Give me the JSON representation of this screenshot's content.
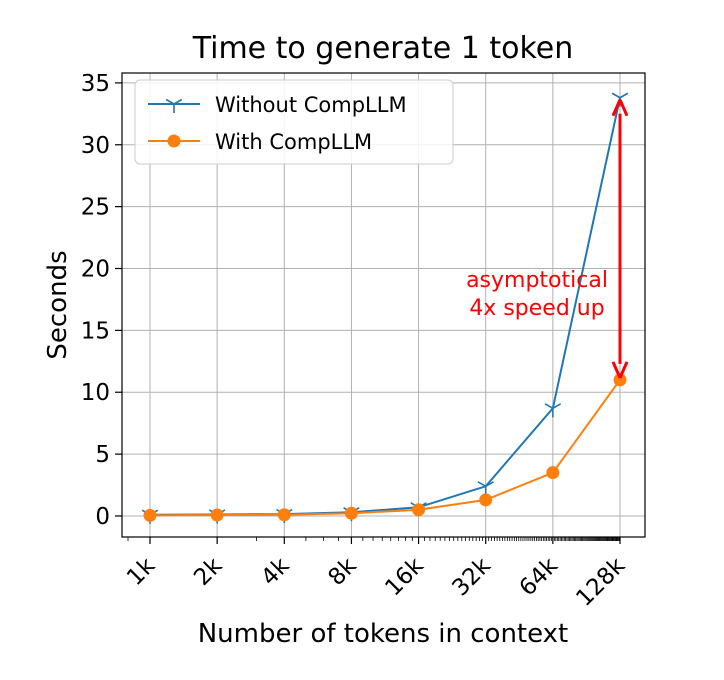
{
  "chart_data": {
    "type": "line",
    "title": "Time to generate 1 token",
    "xlabel": "Number of tokens in context",
    "ylabel": "Seconds",
    "categories": [
      "1k",
      "2k",
      "4k",
      "8k",
      "16k",
      "32k",
      "64k",
      "128k"
    ],
    "x_scale": "log2",
    "yticks": [
      0,
      5,
      10,
      15,
      20,
      25,
      30,
      35
    ],
    "ylim": [
      -1.7,
      35.8
    ],
    "grid": true,
    "legend_position": "upper-left",
    "series": [
      {
        "name": "Without CompLLM",
        "color": "#1f77b4",
        "marker": "tri-down",
        "values": [
          0.1,
          0.12,
          0.15,
          0.3,
          0.7,
          2.4,
          8.7,
          33.8
        ]
      },
      {
        "name": "With CompLLM",
        "color": "#ff7f0e",
        "marker": "circle",
        "values": [
          0.05,
          0.08,
          0.1,
          0.22,
          0.5,
          1.3,
          3.5,
          11.0
        ]
      }
    ],
    "annotation": {
      "lines": [
        "asymptotical",
        "4x speed up"
      ],
      "color": "#ff0000",
      "arrow_from": {
        "x": "128k",
        "y": 33.8
      },
      "arrow_to": {
        "x": "128k",
        "y": 11.0
      }
    }
  }
}
